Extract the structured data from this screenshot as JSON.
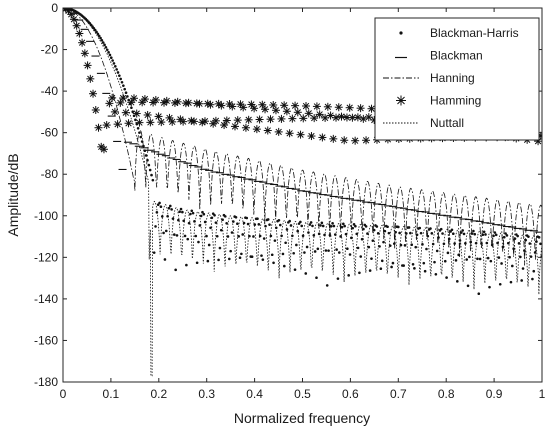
{
  "chart_data": {
    "type": "line",
    "title": "",
    "xlabel": "Normalized frequency",
    "ylabel": "Amplitude/dB",
    "xlim": [
      0,
      1
    ],
    "ylim": [
      -180,
      0
    ],
    "xticks": [
      0,
      0.1,
      0.2,
      0.3,
      0.4,
      0.5,
      0.6,
      0.7,
      0.8,
      0.9,
      1
    ],
    "xtick_labels": [
      "0",
      "0.1",
      "0.2",
      "0.3",
      "0.4",
      "0.5",
      "0.6",
      "0.7",
      "0.8",
      "0.9",
      "1"
    ],
    "yticks": [
      0,
      -20,
      -40,
      -60,
      -80,
      -100,
      -120,
      -140,
      -160,
      -180
    ],
    "ytick_labels": [
      "0",
      "-20",
      "-40",
      "-60",
      "-80",
      "-100",
      "-120",
      "-140",
      "-160",
      "-180"
    ],
    "grid": false,
    "legend_position": "top-right",
    "series": [
      {
        "name": "Blackman-Harris",
        "marker": "dot",
        "main_lobe_edge": 0.19,
        "envelope_x": [
          0.19,
          0.25,
          0.35,
          0.5,
          0.7,
          0.9,
          1.0
        ],
        "envelope_y": [
          -93,
          -97,
          -100,
          -103,
          -105,
          -108,
          -110
        ],
        "null_depth": -30
      },
      {
        "name": "Blackman",
        "marker": "dash",
        "main_lobe_edge": 0.13,
        "envelope_x": [
          0.13,
          0.2,
          0.3,
          0.5,
          0.7,
          0.9,
          1.0
        ],
        "envelope_y": [
          -58,
          -64,
          -72,
          -82,
          -90,
          -98,
          -102
        ],
        "null_depth": -32
      },
      {
        "name": "Hanning",
        "marker": "dashdot",
        "main_lobe_edge": 0.15,
        "envelope_x": [
          0.15,
          0.2,
          0.3,
          0.5,
          0.7,
          0.9,
          1.0
        ],
        "envelope_y": [
          -58,
          -62,
          -68,
          -78,
          -86,
          -92,
          -95
        ],
        "null_depth": -30
      },
      {
        "name": "Hamming",
        "marker": "asterisk",
        "main_lobe_edge": 0.09,
        "envelope_x": [
          0.09,
          0.15,
          0.3,
          0.5,
          0.7,
          0.9,
          1.0
        ],
        "envelope_y": [
          -43,
          -43,
          -45,
          -47,
          -49,
          -52,
          -53
        ],
        "null_depth": -30
      },
      {
        "name": "Nuttall",
        "marker": "dotted",
        "main_lobe_edge": 0.18,
        "envelope_x": [
          0.19,
          0.25,
          0.35,
          0.5,
          0.7,
          0.9,
          1.0
        ],
        "envelope_y": [
          -93,
          -97,
          -100,
          -103,
          -105,
          -108,
          -110
        ],
        "null_depth": -28,
        "deep_null_x": 0.185,
        "deep_null_y": -177
      }
    ]
  }
}
